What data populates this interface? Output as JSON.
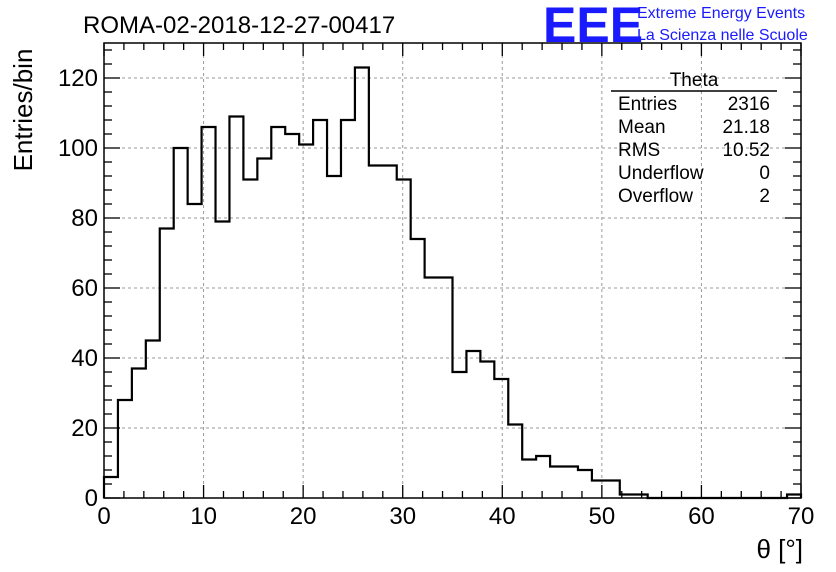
{
  "chart_data": {
    "type": "bar",
    "title": "ROMA-02-2018-12-27-00417",
    "xlabel": "θ [°]",
    "ylabel": "Entries/bin",
    "xlim": [
      0,
      70
    ],
    "ylim": [
      0,
      130
    ],
    "grid": true,
    "x_ticks": [
      0,
      10,
      20,
      30,
      40,
      50,
      60,
      70
    ],
    "y_ticks": [
      0,
      20,
      40,
      60,
      80,
      100,
      120
    ],
    "bin_width": 1.4,
    "bin_edges_start": 0,
    "values": [
      6,
      28,
      37,
      45,
      77,
      100,
      84,
      106,
      79,
      109,
      91,
      97,
      106,
      104,
      101,
      108,
      92,
      108,
      123,
      95,
      95,
      91,
      74,
      63,
      63,
      36,
      42,
      39,
      34,
      21,
      11,
      12,
      9,
      9,
      8,
      5,
      5,
      1,
      1,
      0,
      0,
      0,
      0,
      0,
      0,
      0,
      0,
      0,
      0,
      1
    ],
    "stats": {
      "name": "Theta",
      "rows": [
        {
          "label": "Entries",
          "value": "2316"
        },
        {
          "label": "Mean",
          "value": "21.18"
        },
        {
          "label": "RMS",
          "value": "10.52"
        },
        {
          "label": "Underflow",
          "value": "0"
        },
        {
          "label": "Overflow",
          "value": "2"
        }
      ]
    }
  },
  "logo": {
    "mark": "EEE",
    "line1": "Extreme Energy Events",
    "line2": "La Scienza nelle Scuole",
    "color": "#1a1aff"
  }
}
